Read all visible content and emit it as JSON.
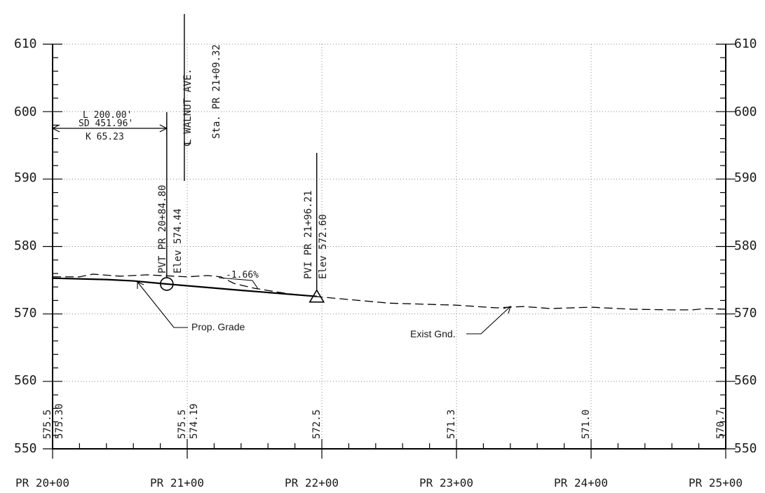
{
  "chart_data": {
    "type": "line",
    "y_axis": {
      "min": 550,
      "max": 610,
      "step": 10,
      "tick_labels": [
        "550",
        "560",
        "570",
        "580",
        "590",
        "600",
        "610"
      ]
    },
    "x_axis": {
      "min_station": 2000,
      "max_station": 2500,
      "tick_labels": [
        "PR 20+00",
        "PR 21+00",
        "PR 22+00",
        "PR 23+00",
        "PR 24+00",
        "PR 25+00"
      ]
    },
    "grid": true,
    "series": [
      {
        "name": "Prop. Grade",
        "style": "solid",
        "x": [
          2000,
          2040,
          2060,
          2084.8,
          2140,
          2196.21
        ],
        "y": [
          575.3,
          575.1,
          574.9,
          574.44,
          573.5,
          572.6
        ]
      },
      {
        "name": "Exist Gnd.",
        "style": "dashed",
        "x": [
          2000,
          2020,
          2030,
          2050,
          2070,
          2090,
          2100,
          2115,
          2125,
          2135,
          2150,
          2175,
          2200,
          2250,
          2300,
          2330,
          2350,
          2370,
          2400,
          2430,
          2460,
          2475,
          2485,
          2500
        ],
        "y": [
          575.5,
          575.5,
          575.9,
          575.6,
          575.8,
          575.6,
          575.5,
          575.7,
          575.5,
          574.5,
          573.8,
          573.0,
          572.5,
          571.6,
          571.3,
          570.9,
          571.1,
          570.8,
          571.0,
          570.7,
          570.6,
          570.6,
          570.8,
          570.7
        ]
      }
    ],
    "elevation_labels": [
      {
        "station": 2000,
        "existing": "575.5",
        "proposed": "575.30"
      },
      {
        "station": 2100,
        "existing": "575.5",
        "proposed": "574.19"
      },
      {
        "station": 2200,
        "existing": "572.5",
        "proposed": ""
      },
      {
        "station": 2300,
        "existing": "571.3",
        "proposed": ""
      },
      {
        "station": 2400,
        "existing": "571.0",
        "proposed": ""
      },
      {
        "station": 2500,
        "existing": "570.7",
        "proposed": ""
      }
    ],
    "annotations": {
      "vertical_curve": {
        "length": "L 200.00'",
        "sight_distance": "SD 451.96'",
        "k_value": "K 65.23"
      },
      "pvt": {
        "station_text": "PVT PR 20+84.80",
        "elev_text": "Elev 574.44",
        "station": 2084.8,
        "elevation": 574.44
      },
      "pvi": {
        "station_text": "PVI PR 21+96.21",
        "elev_text": "Elev 572.60",
        "station": 2196.21,
        "elevation": 572.6
      },
      "centerline": {
        "street_text": "℄ WALNUT AVE.",
        "station_text": "Sta. PR 21+09.32",
        "station": 2109.32
      },
      "grade_text": "-1.66%",
      "prop_grade_label": "Prop. Grade",
      "exist_gnd_label": "Exist Gnd."
    }
  }
}
